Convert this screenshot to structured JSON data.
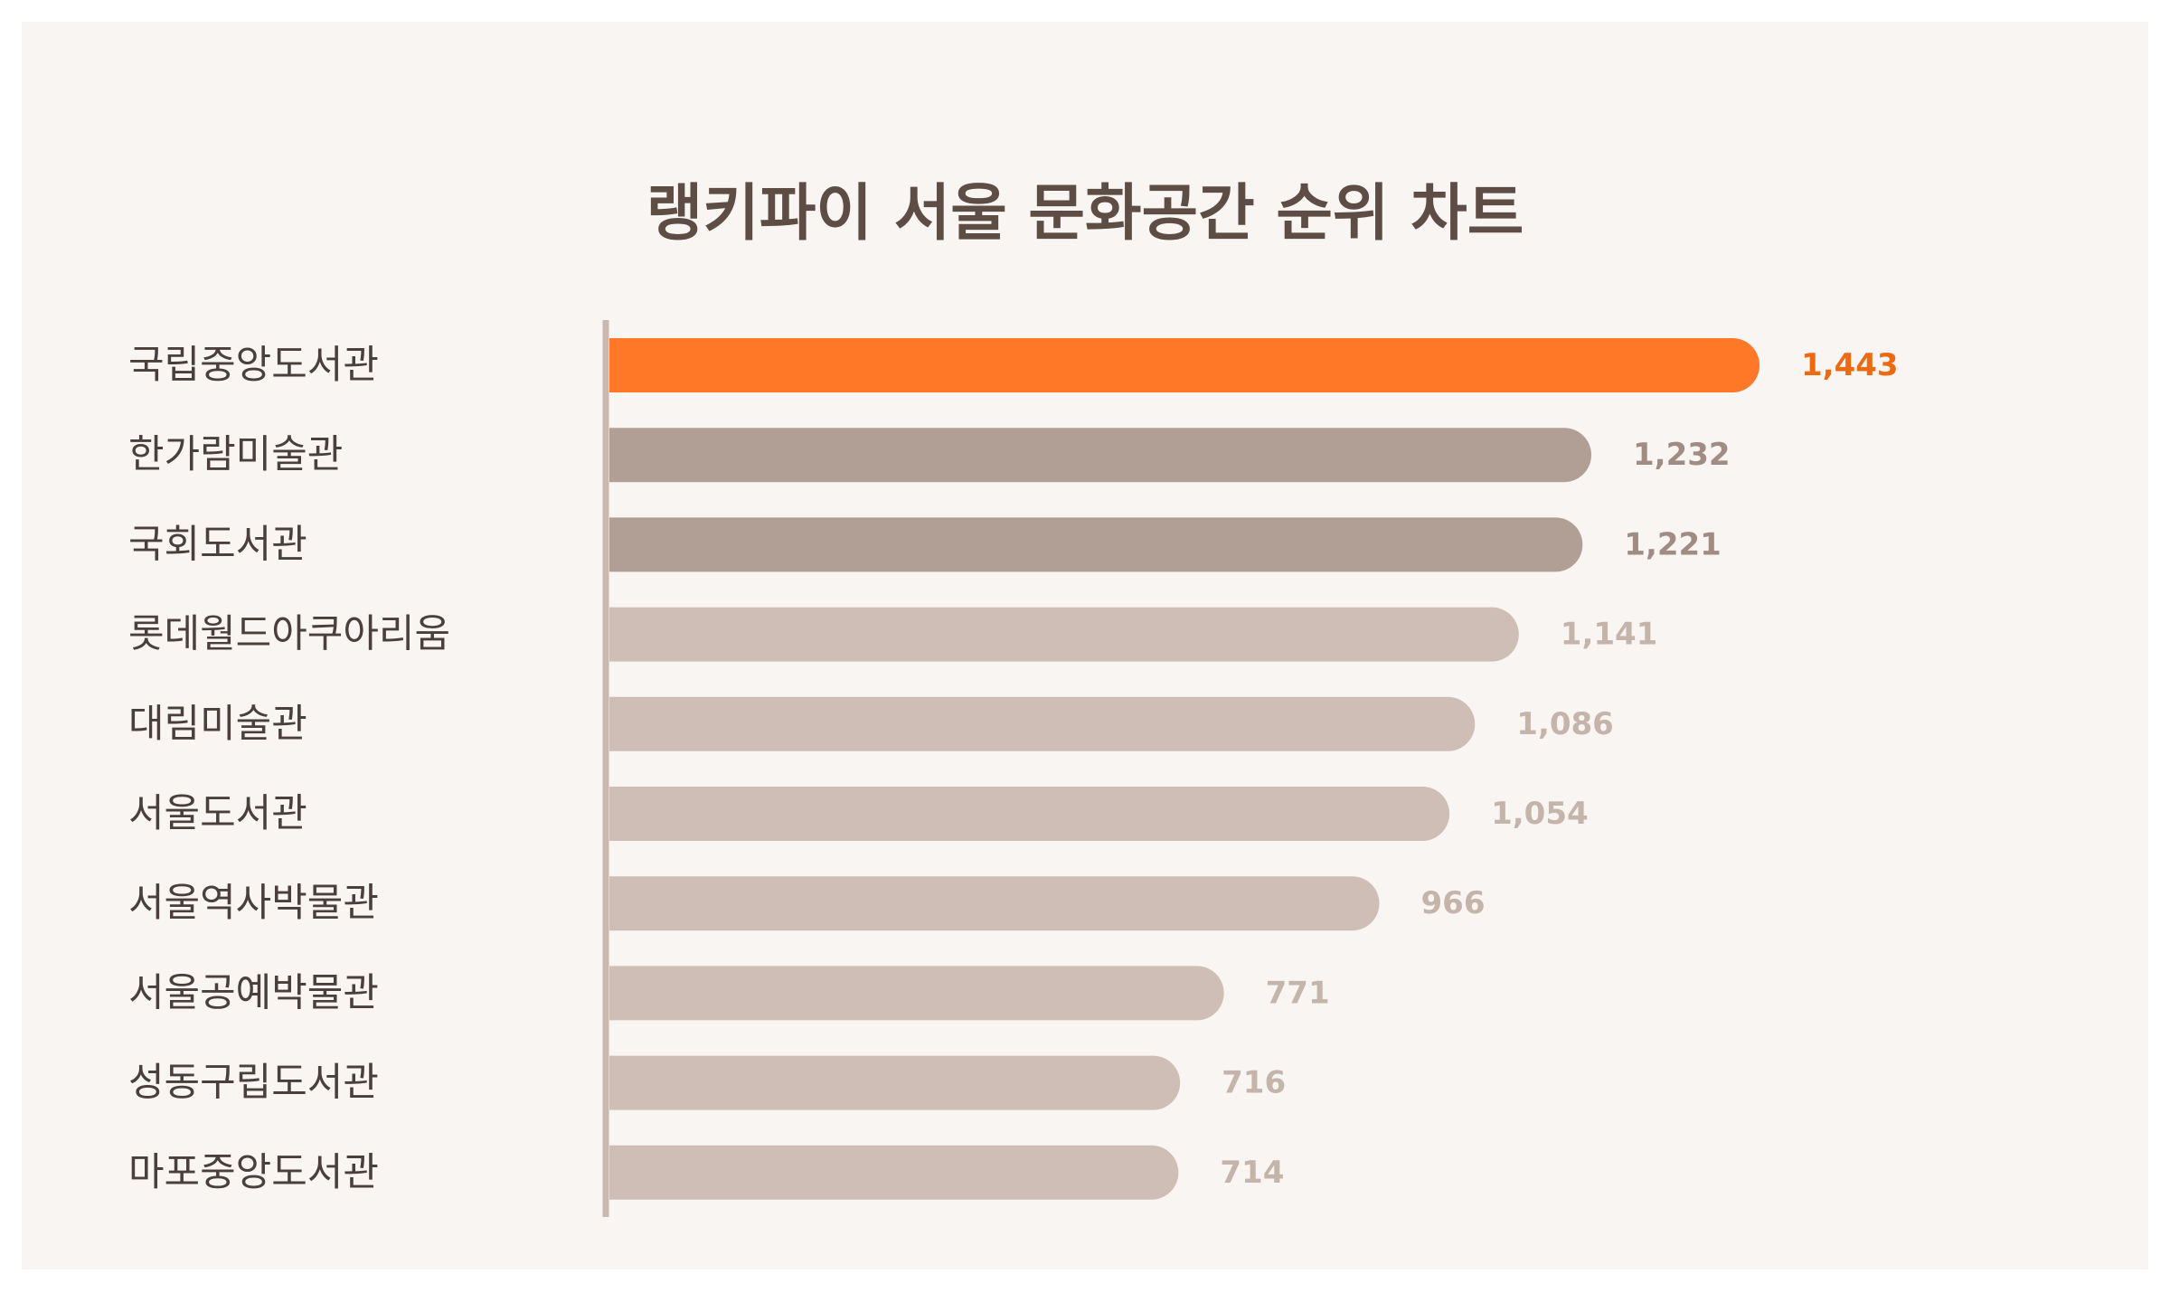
{
  "chart_data": {
    "type": "bar",
    "orientation": "horizontal",
    "title": "랭키파이 서울 문화공간 순위 차트",
    "categories": [
      "국립중앙도서관",
      "한가람미술관",
      "국회도서관",
      "롯데월드아쿠아리움",
      "대림미술관",
      "서울도서관",
      "서울역사박물관",
      "서울공예박물관",
      "성동구립도서관",
      "마포중앙도서관"
    ],
    "values": [
      1443,
      1232,
      1221,
      1141,
      1086,
      1054,
      966,
      771,
      716,
      714
    ],
    "value_labels": [
      "1,443",
      "1,232",
      "1,221",
      "1,141",
      "1,086",
      "1,054",
      "966",
      "771",
      "716",
      "714"
    ],
    "xlim": [
      0,
      1443
    ],
    "grid": false,
    "legend": "none",
    "colors": {
      "top": "#ff7828",
      "top_label": "#ec6a12",
      "second_tier": "#b19f96",
      "second_tier_label": "#a08c83",
      "rest": "#cebeb5",
      "rest_label": "#c5b4aa",
      "axis": "#c9b9b0",
      "title": "#5e4d45",
      "category": "#4a3f3a"
    }
  }
}
